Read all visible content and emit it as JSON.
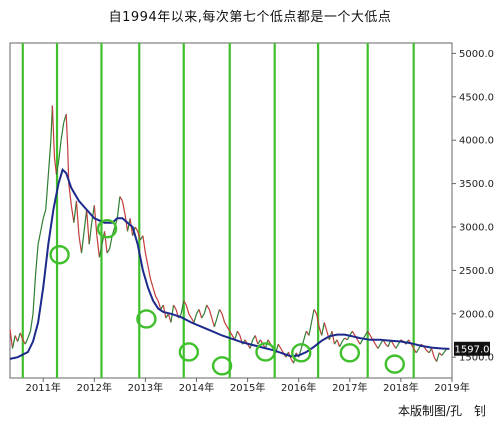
{
  "title": "自1994年以来,每次第七个低点都是一个大低点",
  "credit": "本版制图/孔　钊",
  "colors": {
    "frame": "#666666",
    "price": "#2f7d32",
    "price_down": "#c23b3b",
    "moving_average": "#1c2a8c",
    "cycle_lines": "#3fbf2b",
    "low_circles": "#3fbf2b",
    "last_tag_bg": "#111111",
    "last_tag_text": "#ffffff"
  },
  "chart_data": {
    "type": "line",
    "x_ticks": [
      "2011年",
      "2012年",
      "2013年",
      "2014年",
      "2015年",
      "2016年",
      "2017年",
      "2018年",
      "2019年"
    ],
    "x_range": [
      2010.35,
      2019.0
    ],
    "y_ticks": [
      1500,
      2000,
      2500,
      3000,
      3500,
      4000,
      4500,
      5000
    ],
    "ylim": [
      1260,
      5120
    ],
    "y_side": "right",
    "last_value_label": "1597.0",
    "series": [
      {
        "kind": "price",
        "points": [
          [
            2010.35,
            1820
          ],
          [
            2010.4,
            1600
          ],
          [
            2010.45,
            1750
          ],
          [
            2010.5,
            1680
          ],
          [
            2010.55,
            1780
          ],
          [
            2010.6,
            1700
          ],
          [
            2010.65,
            1650
          ],
          [
            2010.7,
            1720
          ],
          [
            2010.75,
            1800
          ],
          [
            2010.8,
            2000
          ],
          [
            2010.85,
            2450
          ],
          [
            2010.9,
            2800
          ],
          [
            2010.95,
            2950
          ],
          [
            2011.0,
            3100
          ],
          [
            2011.05,
            3200
          ],
          [
            2011.1,
            3600
          ],
          [
            2011.15,
            4000
          ],
          [
            2011.18,
            4400
          ],
          [
            2011.22,
            3800
          ],
          [
            2011.26,
            3600
          ],
          [
            2011.3,
            3750
          ],
          [
            2011.35,
            4000
          ],
          [
            2011.4,
            4200
          ],
          [
            2011.45,
            4300
          ],
          [
            2011.48,
            3900
          ],
          [
            2011.5,
            3500
          ],
          [
            2011.55,
            3250
          ],
          [
            2011.6,
            3050
          ],
          [
            2011.65,
            3300
          ],
          [
            2011.7,
            2900
          ],
          [
            2011.75,
            2700
          ],
          [
            2011.8,
            2950
          ],
          [
            2011.85,
            3200
          ],
          [
            2011.9,
            2800
          ],
          [
            2011.95,
            3050
          ],
          [
            2012.0,
            3250
          ],
          [
            2012.05,
            2900
          ],
          [
            2012.1,
            2650
          ],
          [
            2012.15,
            2800
          ],
          [
            2012.2,
            2950
          ],
          [
            2012.25,
            2700
          ],
          [
            2012.3,
            2750
          ],
          [
            2012.35,
            2900
          ],
          [
            2012.4,
            3000
          ],
          [
            2012.45,
            3100
          ],
          [
            2012.5,
            3350
          ],
          [
            2012.55,
            3300
          ],
          [
            2012.6,
            3150
          ],
          [
            2012.65,
            2950
          ],
          [
            2012.7,
            3100
          ],
          [
            2012.75,
            2900
          ],
          [
            2012.8,
            3000
          ],
          [
            2012.85,
            2950
          ],
          [
            2012.9,
            2850
          ],
          [
            2012.95,
            2900
          ],
          [
            2013.0,
            2700
          ],
          [
            2013.05,
            2550
          ],
          [
            2013.1,
            2400
          ],
          [
            2013.15,
            2300
          ],
          [
            2013.2,
            2200
          ],
          [
            2013.25,
            2150
          ],
          [
            2013.3,
            2050
          ],
          [
            2013.35,
            2100
          ],
          [
            2013.4,
            1950
          ],
          [
            2013.45,
            2000
          ],
          [
            2013.5,
            1900
          ],
          [
            2013.55,
            2100
          ],
          [
            2013.6,
            2050
          ],
          [
            2013.65,
            1950
          ],
          [
            2013.7,
            2000
          ],
          [
            2013.75,
            2150
          ],
          [
            2013.8,
            2100
          ],
          [
            2013.85,
            2000
          ],
          [
            2013.9,
            1950
          ],
          [
            2013.95,
            1900
          ],
          [
            2014.0,
            2000
          ],
          [
            2014.05,
            2050
          ],
          [
            2014.1,
            1950
          ],
          [
            2014.15,
            2000
          ],
          [
            2014.2,
            2100
          ],
          [
            2014.25,
            2050
          ],
          [
            2014.3,
            1950
          ],
          [
            2014.35,
            1850
          ],
          [
            2014.4,
            1950
          ],
          [
            2014.45,
            2050
          ],
          [
            2014.5,
            2000
          ],
          [
            2014.55,
            1900
          ],
          [
            2014.6,
            1850
          ],
          [
            2014.65,
            1800
          ],
          [
            2014.7,
            1750
          ],
          [
            2014.75,
            1700
          ],
          [
            2014.8,
            1800
          ],
          [
            2014.85,
            1750
          ],
          [
            2014.9,
            1650
          ],
          [
            2014.95,
            1700
          ],
          [
            2015.0,
            1650
          ],
          [
            2015.05,
            1600
          ],
          [
            2015.1,
            1700
          ],
          [
            2015.15,
            1750
          ],
          [
            2015.2,
            1650
          ],
          [
            2015.25,
            1700
          ],
          [
            2015.3,
            1650
          ],
          [
            2015.35,
            1600
          ],
          [
            2015.4,
            1700
          ],
          [
            2015.45,
            1650
          ],
          [
            2015.5,
            1600
          ],
          [
            2015.55,
            1550
          ],
          [
            2015.6,
            1650
          ],
          [
            2015.65,
            1600
          ],
          [
            2015.7,
            1550
          ],
          [
            2015.75,
            1500
          ],
          [
            2015.8,
            1560
          ],
          [
            2015.85,
            1480
          ],
          [
            2015.9,
            1430
          ],
          [
            2015.95,
            1550
          ],
          [
            2016.0,
            1500
          ],
          [
            2016.05,
            1600
          ],
          [
            2016.1,
            1700
          ],
          [
            2016.15,
            1800
          ],
          [
            2016.2,
            1750
          ],
          [
            2016.25,
            1900
          ],
          [
            2016.3,
            2050
          ],
          [
            2016.35,
            2000
          ],
          [
            2016.4,
            1850
          ],
          [
            2016.45,
            1750
          ],
          [
            2016.5,
            1900
          ],
          [
            2016.55,
            1800
          ],
          [
            2016.6,
            1700
          ],
          [
            2016.65,
            1800
          ],
          [
            2016.7,
            1650
          ],
          [
            2016.75,
            1700
          ],
          [
            2016.8,
            1620
          ],
          [
            2016.85,
            1680
          ],
          [
            2016.9,
            1720
          ],
          [
            2016.95,
            1700
          ],
          [
            2017.0,
            1750
          ],
          [
            2017.05,
            1800
          ],
          [
            2017.1,
            1750
          ],
          [
            2017.15,
            1700
          ],
          [
            2017.2,
            1650
          ],
          [
            2017.25,
            1700
          ],
          [
            2017.3,
            1750
          ],
          [
            2017.35,
            1800
          ],
          [
            2017.4,
            1750
          ],
          [
            2017.45,
            1700
          ],
          [
            2017.5,
            1650
          ],
          [
            2017.55,
            1600
          ],
          [
            2017.6,
            1650
          ],
          [
            2017.65,
            1700
          ],
          [
            2017.7,
            1650
          ],
          [
            2017.75,
            1620
          ],
          [
            2017.8,
            1700
          ],
          [
            2017.85,
            1650
          ],
          [
            2017.9,
            1600
          ],
          [
            2017.95,
            1650
          ],
          [
            2018.0,
            1700
          ],
          [
            2018.05,
            1680
          ],
          [
            2018.1,
            1650
          ],
          [
            2018.15,
            1700
          ],
          [
            2018.2,
            1650
          ],
          [
            2018.25,
            1600
          ],
          [
            2018.3,
            1550
          ],
          [
            2018.35,
            1600
          ],
          [
            2018.4,
            1650
          ],
          [
            2018.45,
            1620
          ],
          [
            2018.5,
            1580
          ],
          [
            2018.55,
            1550
          ],
          [
            2018.6,
            1600
          ],
          [
            2018.65,
            1500
          ],
          [
            2018.7,
            1450
          ],
          [
            2018.75,
            1550
          ],
          [
            2018.8,
            1520
          ],
          [
            2018.85,
            1560
          ],
          [
            2018.9,
            1600
          ],
          [
            2018.95,
            1597
          ]
        ]
      },
      {
        "kind": "moving_average",
        "points": [
          [
            2010.35,
            1480
          ],
          [
            2010.5,
            1500
          ],
          [
            2010.7,
            1560
          ],
          [
            2010.8,
            1680
          ],
          [
            2010.9,
            1900
          ],
          [
            2011.0,
            2300
          ],
          [
            2011.1,
            2800
          ],
          [
            2011.2,
            3200
          ],
          [
            2011.3,
            3500
          ],
          [
            2011.38,
            3660
          ],
          [
            2011.45,
            3620
          ],
          [
            2011.55,
            3450
          ],
          [
            2011.7,
            3300
          ],
          [
            2011.85,
            3200
          ],
          [
            2012.0,
            3100
          ],
          [
            2012.2,
            3050
          ],
          [
            2012.35,
            3050
          ],
          [
            2012.45,
            3100
          ],
          [
            2012.55,
            3100
          ],
          [
            2012.65,
            3050
          ],
          [
            2012.75,
            3000
          ],
          [
            2012.85,
            2800
          ],
          [
            2012.95,
            2500
          ],
          [
            2013.05,
            2300
          ],
          [
            2013.15,
            2150
          ],
          [
            2013.25,
            2060
          ],
          [
            2013.35,
            2020
          ],
          [
            2013.5,
            2000
          ],
          [
            2013.7,
            1960
          ],
          [
            2013.9,
            1900
          ],
          [
            2014.1,
            1850
          ],
          [
            2014.3,
            1800
          ],
          [
            2014.5,
            1750
          ],
          [
            2014.7,
            1710
          ],
          [
            2014.9,
            1670
          ],
          [
            2015.1,
            1640
          ],
          [
            2015.3,
            1610
          ],
          [
            2015.5,
            1580
          ],
          [
            2015.7,
            1540
          ],
          [
            2015.85,
            1510
          ],
          [
            2016.0,
            1520
          ],
          [
            2016.15,
            1560
          ],
          [
            2016.3,
            1620
          ],
          [
            2016.45,
            1690
          ],
          [
            2016.6,
            1740
          ],
          [
            2016.75,
            1760
          ],
          [
            2016.9,
            1760
          ],
          [
            2017.05,
            1740
          ],
          [
            2017.2,
            1720
          ],
          [
            2017.4,
            1700
          ],
          [
            2017.6,
            1700
          ],
          [
            2017.8,
            1690
          ],
          [
            2018.0,
            1680
          ],
          [
            2018.2,
            1660
          ],
          [
            2018.4,
            1630
          ],
          [
            2018.6,
            1610
          ],
          [
            2018.8,
            1600
          ],
          [
            2018.95,
            1595
          ]
        ]
      }
    ],
    "cycle_lines_x": [
      2010.6,
      2011.27,
      2012.14,
      2012.88,
      2013.75,
      2014.65,
      2015.53,
      2016.38,
      2017.35,
      2018.25
    ],
    "low_markers": [
      [
        2011.32,
        2680
      ],
      [
        2012.25,
        2980
      ],
      [
        2013.02,
        1940
      ],
      [
        2013.85,
        1560
      ],
      [
        2014.5,
        1400
      ],
      [
        2015.35,
        1560
      ],
      [
        2016.05,
        1550
      ],
      [
        2017.0,
        1550
      ],
      [
        2017.88,
        1420
      ]
    ]
  }
}
